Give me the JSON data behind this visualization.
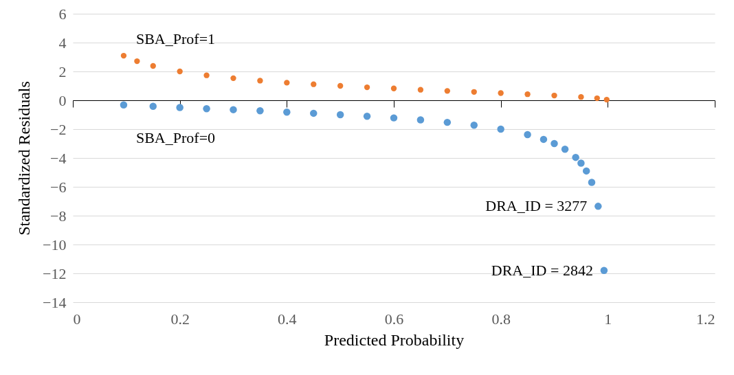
{
  "chart_data": {
    "type": "scatter",
    "xlabel": "Predicted Probability",
    "ylabel": "Standardized Residuals",
    "series": [
      {
        "color": "#5b9bd5",
        "x": [
          0.095,
          0.15,
          0.2,
          0.25,
          0.3,
          0.35,
          0.4,
          0.45,
          0.5,
          0.55,
          0.6,
          0.65,
          0.7,
          0.75,
          0.8,
          0.85,
          0.88,
          0.9,
          0.92,
          0.94,
          0.95,
          0.96,
          0.97,
          0.982,
          0.993
        ],
        "values": [
          -0.32,
          -0.42,
          -0.5,
          -0.58,
          -0.65,
          -0.73,
          -0.82,
          -0.9,
          -1,
          -1.11,
          -1.22,
          -1.36,
          -1.53,
          -1.73,
          -2,
          -2.38,
          -2.71,
          -3,
          -3.39,
          -3.96,
          -4.36,
          -4.9,
          -5.69,
          -7.35,
          -11.8
        ]
      },
      {
        "color": "#ed7d31",
        "x": [
          0.095,
          0.12,
          0.15,
          0.2,
          0.25,
          0.3,
          0.35,
          0.4,
          0.45,
          0.5,
          0.55,
          0.6,
          0.65,
          0.7,
          0.75,
          0.8,
          0.85,
          0.9,
          0.95,
          0.98,
          0.998
        ],
        "values": [
          3.09,
          2.71,
          2.38,
          2,
          1.73,
          1.53,
          1.36,
          1.22,
          1.11,
          1,
          0.9,
          0.82,
          0.73,
          0.65,
          0.58,
          0.5,
          0.42,
          0.33,
          0.23,
          0.14,
          0.04
        ]
      }
    ],
    "annotations": [
      "SBA_Prof=1",
      "SBA_Prof=0",
      {
        "text": "DRA_ID = 3277",
        "x": 0.982,
        "y": -7.35
      },
      {
        "text": "DRA_ID = 2842",
        "x": 0.993,
        "y": -11.8
      }
    ],
    "xlim": [
      0,
      1.2
    ],
    "xticks": [
      0,
      0.2,
      0.4,
      0.6,
      0.8,
      1,
      1.2
    ],
    "ylim": [
      -14,
      6
    ],
    "yticks": [
      -14,
      -12,
      -10,
      -8,
      -6,
      -4,
      -2,
      0,
      2,
      4,
      6
    ],
    "grid": "y",
    "marker": "circle"
  }
}
